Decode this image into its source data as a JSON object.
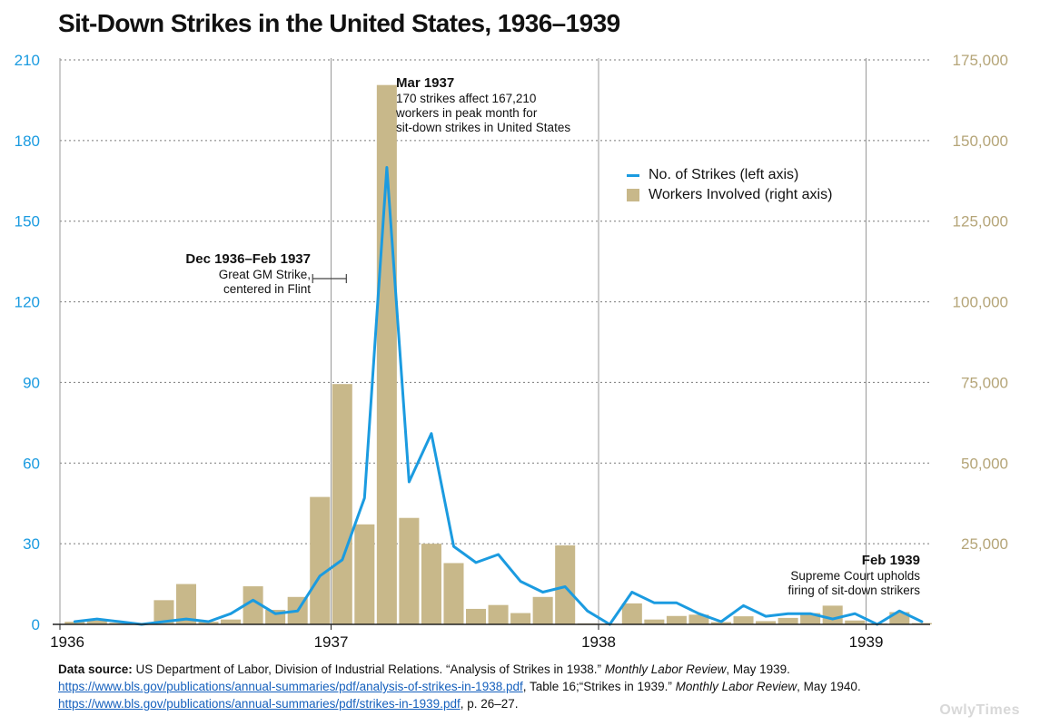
{
  "chart_data": {
    "type": "bar+line",
    "title": "Sit-Down Strikes in the United States, 1936–1939",
    "x_tick_labels": [
      "1936",
      "1937",
      "1938",
      "1939"
    ],
    "left_axis": {
      "ylim": [
        0,
        210
      ],
      "ticks": [
        0,
        30,
        60,
        90,
        120,
        150,
        180,
        210
      ],
      "color": "#1b9be0"
    },
    "right_axis": {
      "ylim": [
        0,
        175000
      ],
      "ticks": [
        25000,
        50000,
        75000,
        100000,
        125000,
        150000,
        175000
      ],
      "tick_labels": [
        "25,000",
        "50,000",
        "75,000",
        "100,000",
        "125,000",
        "150,000",
        "175,000"
      ],
      "color": "#b5a578"
    },
    "months": [
      "Jan 1936",
      "Feb 1936",
      "Mar 1936",
      "Apr 1936",
      "May 1936",
      "Jun 1936",
      "Jul 1936",
      "Aug 1936",
      "Sep 1936",
      "Oct 1936",
      "Nov 1936",
      "Dec 1936",
      "Jan 1937",
      "Feb 1937",
      "Mar 1937",
      "Apr 1937",
      "May 1937",
      "Jun 1937",
      "Jul 1937",
      "Aug 1937",
      "Sep 1937",
      "Oct 1937",
      "Nov 1937",
      "Dec 1937",
      "Jan 1938",
      "Feb 1938",
      "Mar 1938",
      "Apr 1938",
      "May 1938",
      "Jun 1938",
      "Jul 1938",
      "Aug 1938",
      "Sep 1938",
      "Oct 1938",
      "Nov 1938",
      "Dec 1938",
      "Jan 1939",
      "Feb 1939",
      "Mar 1939"
    ],
    "series": [
      {
        "name": "Workers Involved (right axis)",
        "axis": "right",
        "type": "bar",
        "color": "#c8b88a",
        "values": [
          800,
          1200,
          500,
          300,
          7500,
          12500,
          800,
          1500,
          11800,
          4500,
          8500,
          39500,
          74500,
          31000,
          167210,
          33000,
          25000,
          19000,
          4800,
          6000,
          3500,
          8500,
          24500,
          300,
          200,
          6500,
          1500,
          2600,
          3000,
          700,
          2500,
          1000,
          2000,
          3500,
          5800,
          1200,
          300,
          3800,
          400
        ]
      },
      {
        "name": "No. of Strikes (left axis)",
        "axis": "left",
        "type": "line",
        "color": "#1b9be0",
        "values": [
          1,
          2,
          1,
          0,
          1,
          2,
          1,
          4,
          9,
          4,
          5,
          18,
          24,
          47,
          170,
          53,
          71,
          29,
          23,
          26,
          16,
          12,
          14,
          5,
          0,
          12,
          8,
          8,
          4,
          1,
          7,
          3,
          4,
          4,
          2,
          4,
          0,
          5,
          1
        ]
      }
    ],
    "legend": {
      "placement": "right",
      "entries": [
        "No. of Strikes (left axis)",
        "Workers Involved (right axis)"
      ]
    }
  },
  "annotations": {
    "mar1937": {
      "heading": "Mar 1937",
      "lines": [
        "170 strikes affect 167,210",
        "workers in peak month for",
        "sit-down strikes in United States"
      ]
    },
    "gm": {
      "heading": "Dec 1936–Feb 1937",
      "lines": [
        "Great GM Strike,",
        "centered in Flint"
      ]
    },
    "feb1939": {
      "heading": "Feb 1939",
      "lines": [
        "Supreme Court upholds",
        "firing of sit-down strikers"
      ]
    }
  },
  "source": {
    "label": "Data source:",
    "text1": " US Department of Labor, Division of Industrial Relations. “Analysis of Strikes in 1938.” ",
    "journal1": "Monthly Labor Review",
    "text2": ", May 1939. ",
    "link1": "https://www.bls.gov/publications/annual-summaries/pdf/analysis-of-strikes-in-1938.pdf",
    "text3": ", Table 16;“Strikes in 1939.” ",
    "journal2": "Monthly Labor Review",
    "text4": ", May 1940. ",
    "link2": "https://www.bls.gov/publications/annual-summaries/pdf/strikes-in-1939.pdf",
    "text5": ", p. 26–27."
  },
  "watermark": "OwlyTimes"
}
